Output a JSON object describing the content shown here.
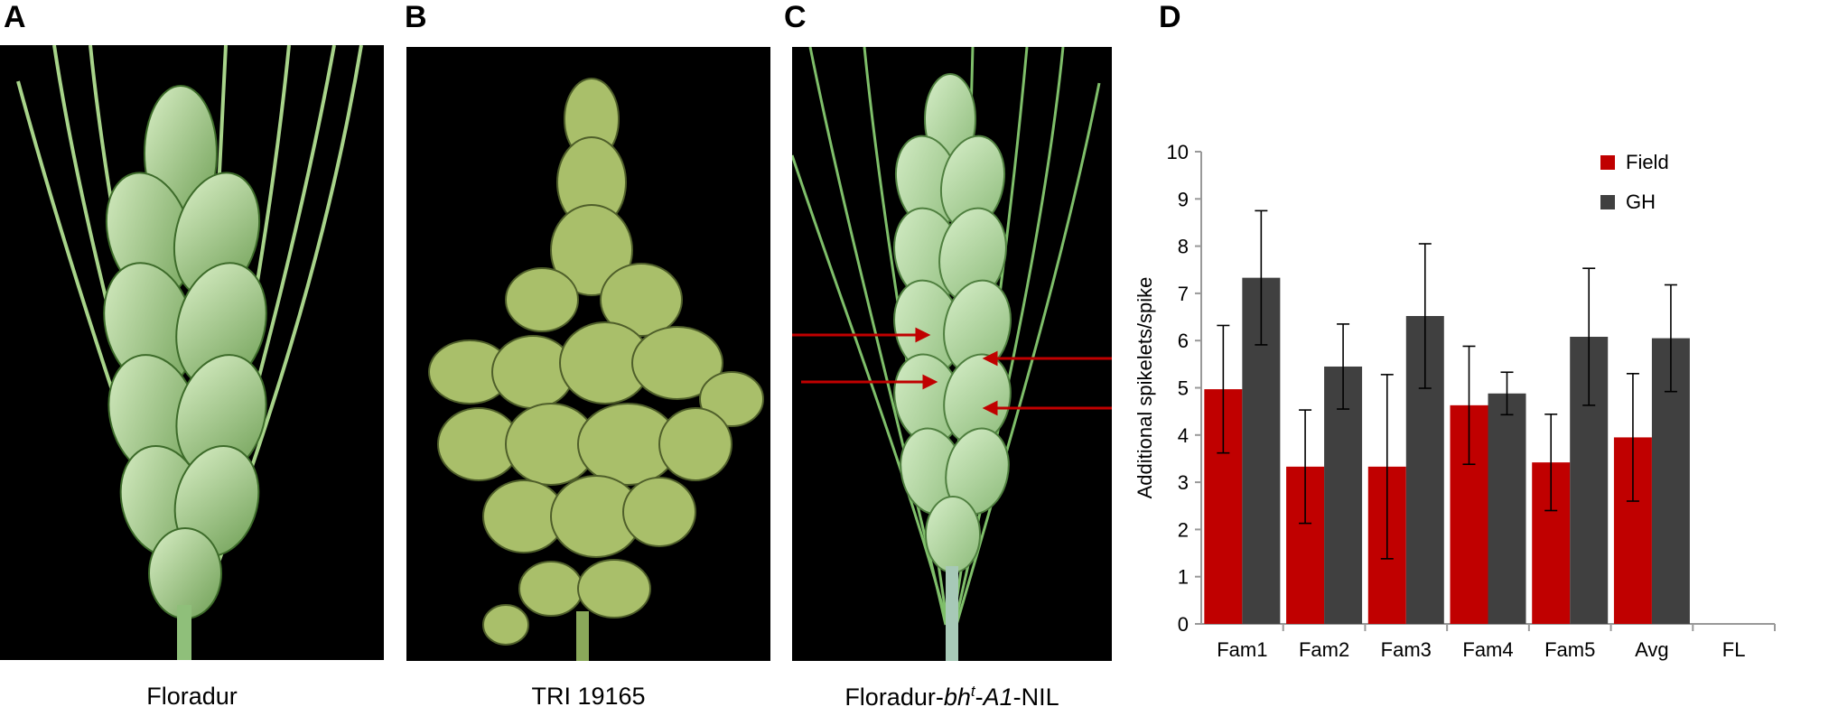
{
  "panels": {
    "a": {
      "letter": "A",
      "caption": "Floradur"
    },
    "b": {
      "letter": "B",
      "caption": "TRI 19165"
    },
    "c": {
      "letter": "C",
      "caption_prefix": "Floradur-",
      "caption_italic1": "bh",
      "caption_sup": "t",
      "caption_mid": "-",
      "caption_italic2": "A1",
      "caption_suffix": "-NIL"
    },
    "d": {
      "letter": "D"
    }
  },
  "colors": {
    "field": "#c00000",
    "gh": "#404040",
    "photo_bg": "#000000",
    "arrow": "#c00000"
  },
  "chart_data": {
    "type": "bar",
    "categories": [
      "Fam1",
      "Fam2",
      "Fam3",
      "Fam4",
      "Fam5",
      "Avg",
      "FL"
    ],
    "series": [
      {
        "name": "Field",
        "values": [
          4.97,
          3.33,
          3.33,
          4.63,
          3.42,
          3.95,
          null
        ],
        "errors": [
          1.35,
          1.2,
          1.95,
          1.25,
          1.02,
          1.35,
          null
        ]
      },
      {
        "name": "GH",
        "values": [
          7.33,
          5.45,
          6.52,
          4.88,
          6.08,
          6.05,
          null
        ],
        "errors": [
          1.42,
          0.9,
          1.53,
          0.45,
          1.45,
          1.13,
          null
        ]
      }
    ],
    "ylabel": "Additional  spikelets/spike",
    "ylim": [
      0,
      10
    ],
    "yticks": [
      0,
      1,
      2,
      3,
      4,
      5,
      6,
      7,
      8,
      9,
      10
    ],
    "legend_position": "top-right",
    "grid": false
  }
}
